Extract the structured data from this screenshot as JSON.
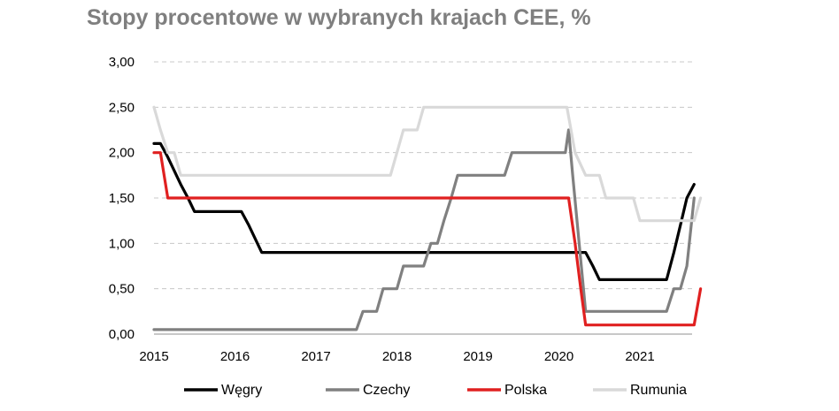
{
  "chart_data": {
    "type": "line",
    "title": "Stopy procentowe w wybranych krajach CEE, %",
    "xlabel": "",
    "ylabel": "",
    "x_ticks": [
      "2015",
      "2016",
      "2017",
      "2018",
      "2019",
      "2020",
      "2021"
    ],
    "y_ticks": [
      "0,00",
      "0,50",
      "1,00",
      "1,50",
      "2,00",
      "2,50",
      "3,00"
    ],
    "xlim": [
      2015.0,
      2021.75
    ],
    "ylim": [
      0,
      3
    ],
    "grid": "horizontal dashed",
    "legend_position": "bottom",
    "series": [
      {
        "name": "Węgry",
        "color": "#000000",
        "points": [
          [
            2015.0,
            2.1
          ],
          [
            2015.08,
            2.1
          ],
          [
            2015.17,
            1.95
          ],
          [
            2015.25,
            1.8
          ],
          [
            2015.33,
            1.65
          ],
          [
            2015.42,
            1.5
          ],
          [
            2015.5,
            1.35
          ],
          [
            2015.58,
            1.35
          ],
          [
            2016.0,
            1.35
          ],
          [
            2016.08,
            1.35
          ],
          [
            2016.17,
            1.2
          ],
          [
            2016.25,
            1.05
          ],
          [
            2016.33,
            0.9
          ],
          [
            2016.5,
            0.9
          ],
          [
            2017.0,
            0.9
          ],
          [
            2018.0,
            0.9
          ],
          [
            2019.0,
            0.9
          ],
          [
            2020.0,
            0.9
          ],
          [
            2020.2,
            0.9
          ],
          [
            2020.33,
            0.9
          ],
          [
            2020.42,
            0.75
          ],
          [
            2020.5,
            0.6
          ],
          [
            2021.0,
            0.6
          ],
          [
            2021.25,
            0.6
          ],
          [
            2021.33,
            0.6
          ],
          [
            2021.42,
            0.9
          ],
          [
            2021.5,
            1.2
          ],
          [
            2021.58,
            1.5
          ],
          [
            2021.67,
            1.65
          ]
        ]
      },
      {
        "name": "Czechy",
        "color": "#808080",
        "points": [
          [
            2015.0,
            0.05
          ],
          [
            2016.0,
            0.05
          ],
          [
            2017.0,
            0.05
          ],
          [
            2017.5,
            0.05
          ],
          [
            2017.58,
            0.25
          ],
          [
            2017.75,
            0.25
          ],
          [
            2017.83,
            0.5
          ],
          [
            2018.0,
            0.5
          ],
          [
            2018.08,
            0.75
          ],
          [
            2018.33,
            0.75
          ],
          [
            2018.42,
            1.0
          ],
          [
            2018.5,
            1.0
          ],
          [
            2018.58,
            1.25
          ],
          [
            2018.67,
            1.5
          ],
          [
            2018.75,
            1.75
          ],
          [
            2019.0,
            1.75
          ],
          [
            2019.33,
            1.75
          ],
          [
            2019.42,
            2.0
          ],
          [
            2020.0,
            2.0
          ],
          [
            2020.08,
            2.0
          ],
          [
            2020.12,
            2.25
          ],
          [
            2020.17,
            1.75
          ],
          [
            2020.25,
            1.0
          ],
          [
            2020.33,
            0.25
          ],
          [
            2021.0,
            0.25
          ],
          [
            2021.33,
            0.25
          ],
          [
            2021.42,
            0.5
          ],
          [
            2021.5,
            0.5
          ],
          [
            2021.58,
            0.75
          ],
          [
            2021.67,
            1.5
          ]
        ]
      },
      {
        "name": "Polska",
        "color": "#e02020",
        "points": [
          [
            2015.0,
            2.0
          ],
          [
            2015.08,
            2.0
          ],
          [
            2015.17,
            1.5
          ],
          [
            2016.0,
            1.5
          ],
          [
            2017.0,
            1.5
          ],
          [
            2018.0,
            1.5
          ],
          [
            2019.0,
            1.5
          ],
          [
            2020.0,
            1.5
          ],
          [
            2020.12,
            1.5
          ],
          [
            2020.2,
            1.0
          ],
          [
            2020.27,
            0.5
          ],
          [
            2020.33,
            0.1
          ],
          [
            2021.0,
            0.1
          ],
          [
            2021.5,
            0.1
          ],
          [
            2021.67,
            0.1
          ],
          [
            2021.75,
            0.5
          ]
        ]
      },
      {
        "name": "Rumunia",
        "color": "#d9d9d9",
        "points": [
          [
            2015.0,
            2.5
          ],
          [
            2015.08,
            2.25
          ],
          [
            2015.17,
            2.0
          ],
          [
            2015.25,
            2.0
          ],
          [
            2015.33,
            1.75
          ],
          [
            2016.0,
            1.75
          ],
          [
            2017.0,
            1.75
          ],
          [
            2017.92,
            1.75
          ],
          [
            2018.0,
            2.0
          ],
          [
            2018.08,
            2.25
          ],
          [
            2018.25,
            2.25
          ],
          [
            2018.33,
            2.5
          ],
          [
            2019.0,
            2.5
          ],
          [
            2020.0,
            2.5
          ],
          [
            2020.1,
            2.5
          ],
          [
            2020.2,
            2.0
          ],
          [
            2020.33,
            1.75
          ],
          [
            2020.5,
            1.75
          ],
          [
            2020.58,
            1.5
          ],
          [
            2020.92,
            1.5
          ],
          [
            2021.0,
            1.25
          ],
          [
            2021.67,
            1.25
          ],
          [
            2021.75,
            1.5
          ]
        ]
      }
    ]
  }
}
